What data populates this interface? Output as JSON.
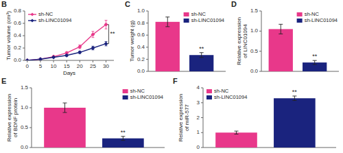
{
  "chart_data": [
    {
      "type": "line",
      "title": "B",
      "x": [
        0,
        5,
        10,
        15,
        20,
        25,
        30
      ],
      "series": [
        {
          "name": "sh-NC",
          "color": "#E8388A",
          "marker": "diamond",
          "values": [
            0.0,
            0.02,
            0.06,
            0.12,
            0.22,
            0.42,
            0.58
          ],
          "errors": [
            0.0,
            0.01,
            0.015,
            0.02,
            0.03,
            0.05,
            0.07
          ]
        },
        {
          "name": "sh-LINC01094",
          "color": "#1A237E",
          "marker": "diamond",
          "values": [
            0.0,
            0.02,
            0.05,
            0.08,
            0.13,
            0.2,
            0.27
          ],
          "errors": [
            0.0,
            0.01,
            0.01,
            0.015,
            0.02,
            0.03,
            0.035
          ]
        }
      ],
      "xlabel": "Days",
      "ylabel": "Tumor volume (cm³)",
      "xlim": [
        -1,
        33
      ],
      "xticks": [
        0,
        5,
        10,
        15,
        20,
        25,
        30
      ],
      "ylim": [
        0,
        0.8
      ],
      "yticks": [
        {
          "value": 0.0,
          "label": "0.0"
        },
        0.2,
        0.4,
        0.6,
        0.8
      ],
      "legend": "upper left",
      "annotation": "**"
    },
    {
      "type": "bar",
      "title": "C",
      "series": [
        {
          "name": "sh-NC",
          "color": "#E8388A",
          "values": [
            0.82
          ],
          "errors": [
            0.08
          ]
        },
        {
          "name": "sh-LINC01094",
          "color": "#1A237E",
          "values": [
            0.27
          ],
          "errors": [
            0.04
          ]
        }
      ],
      "ylabel": "Tumor weight (g)",
      "ylim": [
        0,
        1.0
      ],
      "yticks": [
        {
          "value": 0.0,
          "label": "0.0"
        },
        0.2,
        0.4,
        0.6,
        0.8,
        {
          "value": 1.0,
          "label": "1.0"
        }
      ],
      "legend": "upper right",
      "tick_labels": "y",
      "annotation": "**"
    },
    {
      "type": "bar",
      "title": "D",
      "series": [
        {
          "name": "sh-NC",
          "color": "#E8388A",
          "values": [
            1.05
          ],
          "errors": [
            0.12
          ]
        },
        {
          "name": "sh-LINC01094",
          "color": "#1A237E",
          "values": [
            0.22
          ],
          "errors": [
            0.05
          ]
        }
      ],
      "ylabel": "Relative expression\nof LINC01094",
      "ylim": [
        0,
        1.5
      ],
      "yticks": [
        {
          "value": 0.0,
          "label": "0.0"
        },
        0.5,
        {
          "value": 1.0,
          "label": "1.0"
        },
        1.5
      ],
      "legend": "upper right",
      "tick_labels": "y",
      "annotation": "**"
    },
    {
      "type": "bar",
      "title": "E",
      "series": [
        {
          "name": "sh-NC",
          "color": "#E8388A",
          "values": [
            1.0
          ],
          "errors": [
            0.12
          ]
        },
        {
          "name": "sh-LINC01094",
          "color": "#1A237E",
          "values": [
            0.23
          ],
          "errors": [
            0.05
          ]
        }
      ],
      "ylabel": "Relative expression\nof BDNF protein",
      "ylim": [
        0,
        1.5
      ],
      "yticks": [
        {
          "value": 0.0,
          "label": "0.0"
        },
        0.5,
        {
          "value": 1.0,
          "label": "1.0"
        },
        1.5
      ],
      "legend": "upper right",
      "tick_labels": "y",
      "annotation": "**"
    },
    {
      "type": "bar",
      "title": "F",
      "series": [
        {
          "name": "sh-NC",
          "color": "#E8388A",
          "values": [
            1.0
          ],
          "errors": [
            0.1
          ]
        },
        {
          "name": "sh-LINC01094",
          "color": "#1A237E",
          "values": [
            3.3
          ],
          "errors": [
            0.15
          ]
        }
      ],
      "ylabel": "Relative expression\nof miR-577",
      "ylim": [
        0,
        4
      ],
      "yticks": [
        0,
        1,
        2,
        3,
        4
      ],
      "legend": "upper left",
      "tick_labels": "y",
      "annotation": "**"
    }
  ]
}
